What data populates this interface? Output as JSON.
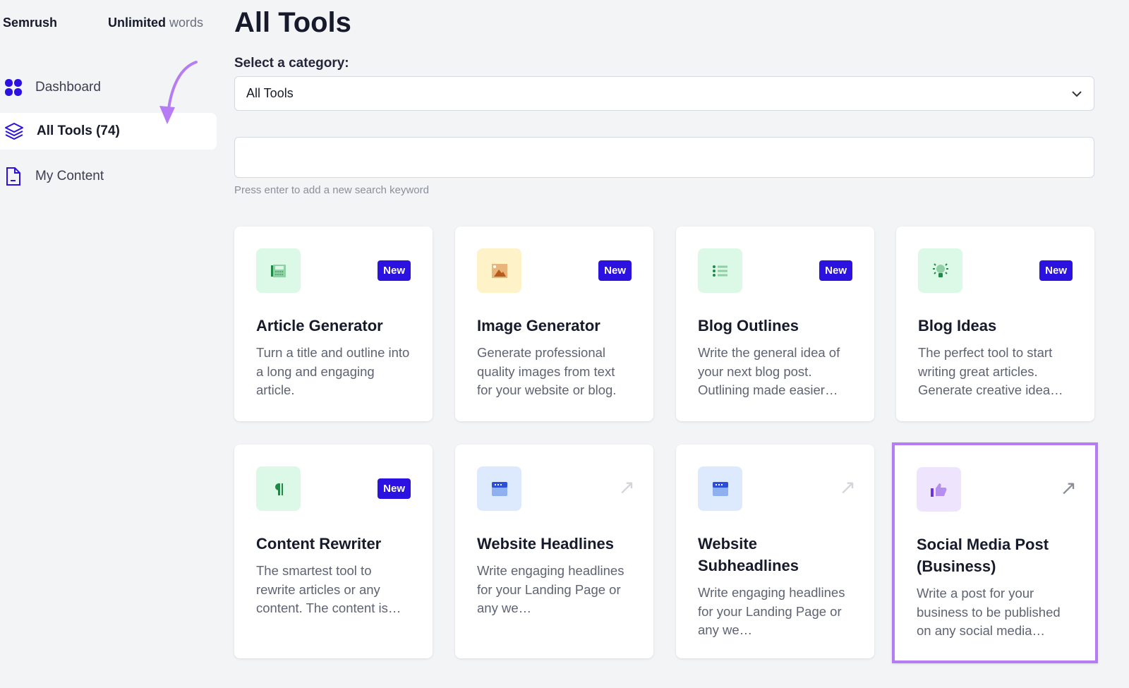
{
  "sidebar": {
    "brand": "Semrush",
    "plan_strong": "Unlimited",
    "plan_rest": "words",
    "items": [
      {
        "label": "Dashboard",
        "icon": "grid-icon"
      },
      {
        "label": "All Tools (74)",
        "icon": "layers-icon",
        "active": true
      },
      {
        "label": "My Content",
        "icon": "document-icon"
      }
    ]
  },
  "main": {
    "title": "All Tools",
    "category_label": "Select a category:",
    "category_value": "All Tools",
    "search_value": "",
    "search_hint": "Press enter to add a new search keyword",
    "cards": [
      {
        "title": "Article Generator",
        "desc": "Turn a title and outline into a long and engaging article.",
        "badge": "New",
        "icon": "newspaper-icon",
        "icon_bg": "#dcf8e7"
      },
      {
        "title": "Image Generator",
        "desc": "Generate professional quality images from text for your website or blog.",
        "badge": "New",
        "icon": "image-icon",
        "icon_bg": "#fdf2c8"
      },
      {
        "title": "Blog Outlines",
        "desc": "Write the general idea of your next blog post. Outlining made easier…",
        "badge": "New",
        "icon": "list-icon",
        "icon_bg": "#dcf8e7"
      },
      {
        "title": "Blog Ideas",
        "desc": "The perfect tool to start writing great articles. Generate creative idea…",
        "badge": "New",
        "icon": "lightbulb-icon",
        "icon_bg": "#dcf8e7"
      },
      {
        "title": "Content Rewriter",
        "desc": "The smartest tool to rewrite articles or any content. The content is…",
        "badge": "New",
        "icon": "paragraph-icon",
        "icon_bg": "#dcf8e7"
      },
      {
        "title": "Website Headlines",
        "desc": "Write engaging headlines for your Landing Page or any we…",
        "icon": "browser-icon",
        "icon_bg": "#dde9fd"
      },
      {
        "title": "Website Subheadlines",
        "desc": "Write engaging headlines for your Landing Page or any we…",
        "icon": "browser-icon",
        "icon_bg": "#dde9fd"
      },
      {
        "title": "Social Media Post (Business)",
        "desc": "Write a post for your business to be published on any social media…",
        "icon": "thumbs-up-icon",
        "icon_bg": "#efe4fd",
        "highlighted": true
      }
    ]
  },
  "colors": {
    "accent": "#2b12e0",
    "highlight": "#b67cf4"
  }
}
